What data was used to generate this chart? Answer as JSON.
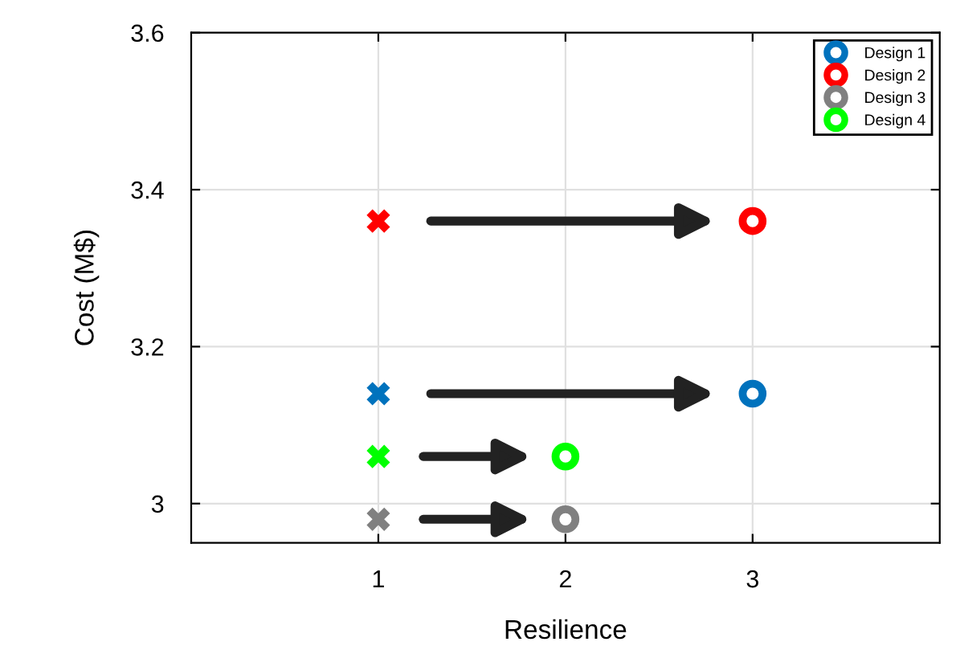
{
  "chart_data": {
    "type": "scatter",
    "xlabel": "Resilience",
    "ylabel": "Cost (M$)",
    "xlim": [
      0,
      4
    ],
    "xticks": [
      1,
      2,
      3
    ],
    "ylim": [
      2.95,
      3.6
    ],
    "yticks": [
      3,
      3.2,
      3.4,
      3.6
    ],
    "grid": true,
    "legend": "top right",
    "series": [
      {
        "name": "Design 1",
        "color": "#0072bd",
        "marker": "circle",
        "x": [
          3
        ],
        "values": [
          3.14
        ]
      },
      {
        "name": "Design 2",
        "color": "#ff0000",
        "marker": "circle",
        "x": [
          3
        ],
        "values": [
          3.36
        ]
      },
      {
        "name": "Design 3",
        "color": "#808080",
        "marker": "circle",
        "x": [
          2
        ],
        "values": [
          2.98
        ]
      },
      {
        "name": "Design 4",
        "color": "#00ff00",
        "marker": "circle",
        "x": [
          2
        ],
        "values": [
          3.06
        ]
      },
      {
        "color": "#0072bd",
        "marker": "cross",
        "x": [
          1
        ],
        "values": [
          3.14
        ]
      },
      {
        "color": "#ff0000",
        "marker": "cross",
        "x": [
          1
        ],
        "values": [
          3.36
        ]
      },
      {
        "color": "#808080",
        "marker": "cross",
        "x": [
          1
        ],
        "values": [
          2.98
        ]
      },
      {
        "color": "#00ff00",
        "marker": "cross",
        "x": [
          1
        ],
        "values": [
          3.06
        ]
      }
    ]
  }
}
